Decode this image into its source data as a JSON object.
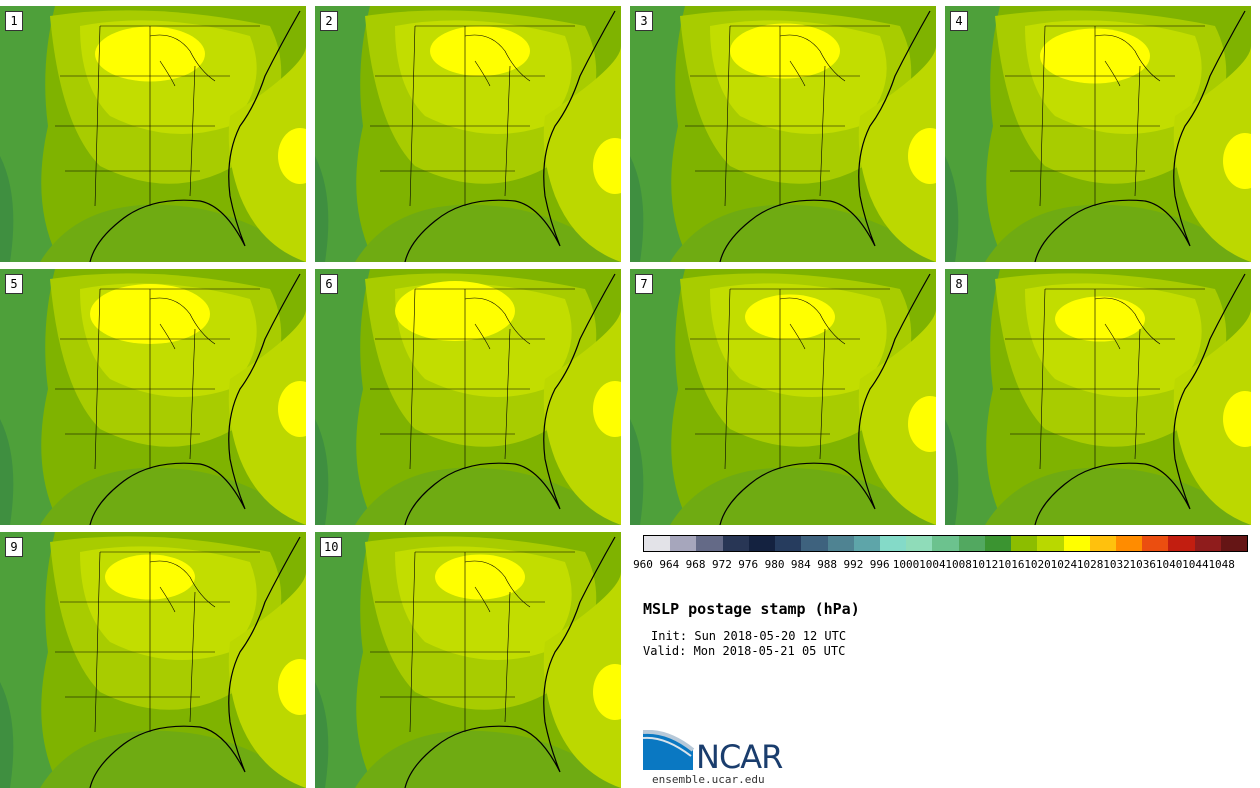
{
  "title": "MSLP postage stamp (hPa)",
  "init_label": "Init: Sun 2018-05-20 12 UTC",
  "valid_label": "Valid: Mon 2018-05-21 05 UTC",
  "logo": {
    "name": "NCAR",
    "url": "ensemble.ucar.edu"
  },
  "panels": [
    {
      "label": "1"
    },
    {
      "label": "2"
    },
    {
      "label": "3"
    },
    {
      "label": "4"
    },
    {
      "label": "5"
    },
    {
      "label": "6"
    },
    {
      "label": "7"
    },
    {
      "label": "8"
    },
    {
      "label": "9"
    },
    {
      "label": "10"
    }
  ],
  "colorbar": {
    "colors": [
      "#e3e3e8",
      "#a6a6bc",
      "#646a87",
      "#283655",
      "#142240",
      "#263c5e",
      "#3e627e",
      "#4f8392",
      "#5ea5a9",
      "#84dac8",
      "#8fdcb9",
      "#6cc28e",
      "#52a860",
      "#3b9431",
      "#8cbd00",
      "#b9d800",
      "#ffff00",
      "#ffc10d",
      "#ff8c00",
      "#eb4e10",
      "#c21e10",
      "#8f1c1c",
      "#651515"
    ],
    "ticks": [
      "960",
      "964",
      "968",
      "972",
      "976",
      "980",
      "984",
      "988",
      "992",
      "996",
      "1000",
      "1004",
      "1008",
      "1012",
      "1016",
      "1020",
      "1024",
      "1028",
      "1032",
      "1036",
      "1040",
      "1044",
      "1048"
    ]
  }
}
